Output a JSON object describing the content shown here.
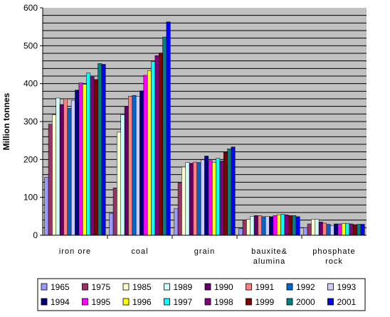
{
  "chart_data": {
    "type": "bar",
    "title": "",
    "xlabel": "",
    "ylabel": "Million tonnes",
    "ylim": [
      0,
      600
    ],
    "yticks": [
      0,
      100,
      200,
      300,
      400,
      500,
      600
    ],
    "grid": true,
    "legend_position": "bottom",
    "categories": [
      [
        "iron ore"
      ],
      [
        "coal"
      ],
      [
        "grain"
      ],
      [
        "bauxite&",
        "alumina"
      ],
      [
        "phosphate",
        "rock"
      ]
    ],
    "series": [
      {
        "name": "1965",
        "color": "#9999ff",
        "values": [
          153,
          58,
          70,
          18,
          20
        ]
      },
      {
        "name": "1975",
        "color": "#993366",
        "values": [
          293,
          125,
          138,
          40,
          30
        ]
      },
      {
        "name": "1985",
        "color": "#ffffcc",
        "values": [
          318,
          272,
          180,
          42,
          42
        ]
      },
      {
        "name": "1989",
        "color": "#ccffff",
        "values": [
          362,
          318,
          192,
          50,
          42
        ]
      },
      {
        "name": "1990",
        "color": "#660066",
        "values": [
          345,
          340,
          190,
          52,
          35
        ]
      },
      {
        "name": "1991",
        "color": "#ff8080",
        "values": [
          360,
          367,
          193,
          52,
          32
        ]
      },
      {
        "name": "1992",
        "color": "#0066cc",
        "values": [
          335,
          369,
          192,
          49,
          29
        ]
      },
      {
        "name": "1993",
        "color": "#ccccff",
        "values": [
          356,
          367,
          199,
          50,
          26
        ]
      },
      {
        "name": "1994",
        "color": "#000080",
        "values": [
          383,
          381,
          209,
          49,
          30
        ]
      },
      {
        "name": "1995",
        "color": "#ff00ff",
        "values": [
          402,
          422,
          197,
          52,
          30
        ]
      },
      {
        "name": "1996",
        "color": "#ffff00",
        "values": [
          398,
          434,
          192,
          54,
          31
        ]
      },
      {
        "name": "1997",
        "color": "#00ffff",
        "values": [
          428,
          458,
          203,
          55,
          31
        ]
      },
      {
        "name": "1998",
        "color": "#800080",
        "values": [
          418,
          474,
          196,
          54,
          30
        ]
      },
      {
        "name": "1999",
        "color": "#800000",
        "values": [
          411,
          481,
          219,
          52,
          28
        ]
      },
      {
        "name": "2000",
        "color": "#008080",
        "values": [
          453,
          523,
          228,
          52,
          29
        ]
      },
      {
        "name": "2001",
        "color": "#0000ff",
        "values": [
          451,
          563,
          233,
          49,
          29
        ]
      }
    ]
  },
  "colors": {
    "plot_background": "#c0c0c0",
    "gridline": "#000000"
  }
}
